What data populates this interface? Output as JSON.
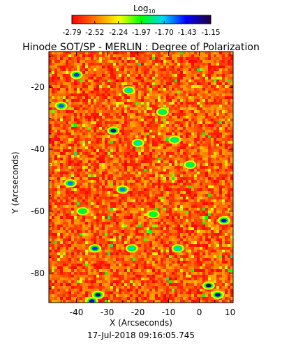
{
  "chart_data": {
    "type": "heatmap",
    "title": "Hinode SOT/SP - MERLIN : Degree of Polarization",
    "colorbar": {
      "label_main": "Log",
      "label_sub": "10",
      "ticks": [
        "-2.79",
        "-2.52",
        "-2.24",
        "-1.97",
        "-1.70",
        "-1.43",
        "-1.15"
      ],
      "range": [
        -2.79,
        -1.15
      ],
      "colors": [
        "#ff0000",
        "#ff7f00",
        "#ffff00",
        "#00ff00",
        "#00cfff",
        "#0000ff",
        "#200040"
      ]
    },
    "xlabel": "X (Arcseconds)",
    "ylabel": "Y (Arcseconds)",
    "xlim": [
      -49,
      11
    ],
    "ylim": [
      -89.5,
      -8.5
    ],
    "xticks": [
      -40,
      -30,
      -20,
      -10,
      0,
      10
    ],
    "yticks": [
      -20,
      -40,
      -60,
      -80
    ],
    "grid": false,
    "legend": "none",
    "dominant_value_range": [
      -2.79,
      -2.4
    ],
    "strong_patches": [
      {
        "x": -40,
        "y": -16,
        "value": -1.5
      },
      {
        "x": -45,
        "y": -26,
        "value": -1.55
      },
      {
        "x": -28,
        "y": -34,
        "value": -1.3
      },
      {
        "x": -23,
        "y": -21,
        "value": -1.7
      },
      {
        "x": -25,
        "y": -53,
        "value": -1.6
      },
      {
        "x": -42,
        "y": -51,
        "value": -1.6
      },
      {
        "x": -34,
        "y": -72,
        "value": -1.5
      },
      {
        "x": -20,
        "y": -38,
        "value": -1.75
      },
      {
        "x": -8,
        "y": -37,
        "value": -1.8
      },
      {
        "x": 3,
        "y": -84,
        "value": -1.2
      },
      {
        "x": 6,
        "y": -87,
        "value": -1.3
      },
      {
        "x": -33,
        "y": -87,
        "value": -1.3
      },
      {
        "x": -35,
        "y": -89,
        "value": -1.4
      },
      {
        "x": 8,
        "y": -63,
        "value": -1.45
      },
      {
        "x": -7,
        "y": -72,
        "value": -1.7
      },
      {
        "x": -22,
        "y": -72,
        "value": -1.75
      },
      {
        "x": -12,
        "y": -28,
        "value": -1.85
      },
      {
        "x": -3,
        "y": -45,
        "value": -1.85
      },
      {
        "x": -38,
        "y": -60,
        "value": -1.9
      },
      {
        "x": -15,
        "y": -61,
        "value": -1.9
      }
    ]
  },
  "footer": {
    "timestamp": "17-Jul-2018 09:16:05.745"
  }
}
